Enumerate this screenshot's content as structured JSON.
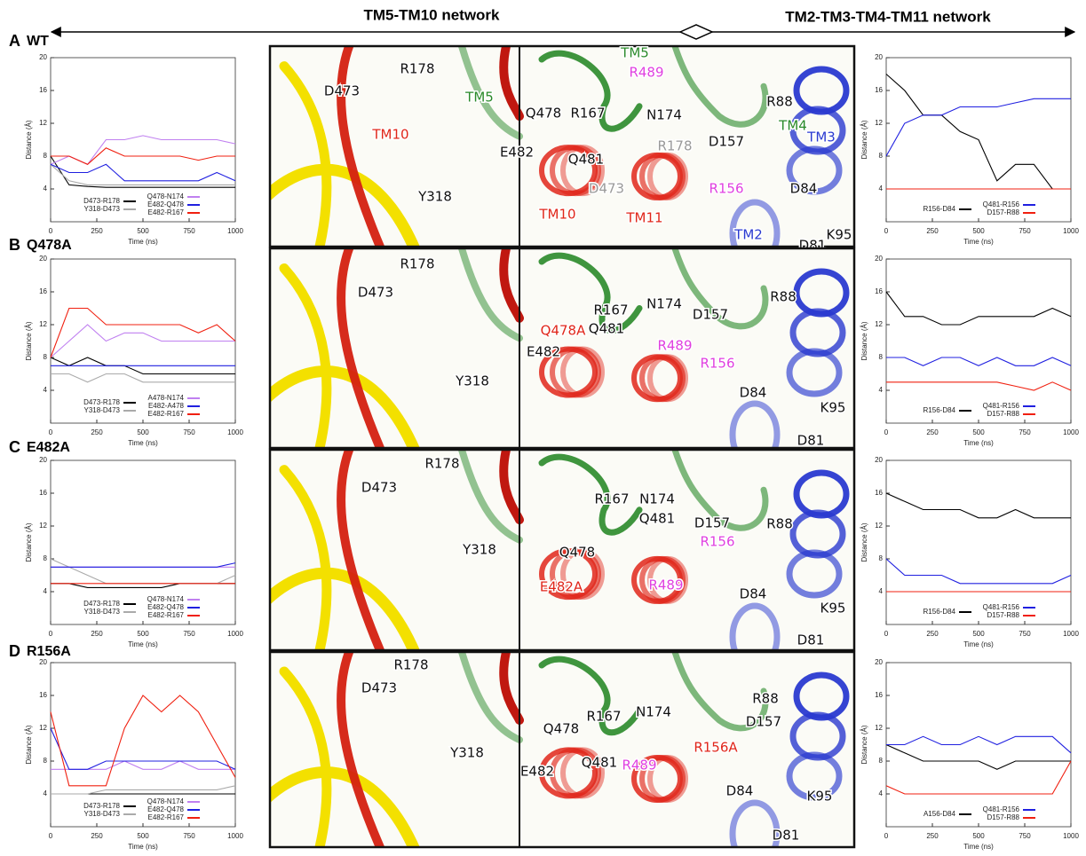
{
  "header": {
    "left": "TM5-TM10 network",
    "right": "TM2-TM3-TM4-TM11 network"
  },
  "rows": [
    {
      "label": "A",
      "mutant": "WT",
      "left_labels": [
        {
          "text": "R178",
          "color": "#111111"
        },
        {
          "text": "D473",
          "color": "#111111"
        },
        {
          "text": "TM5",
          "color": "#2a8a2a"
        },
        {
          "text": "TM10",
          "color": "#e0261a"
        },
        {
          "text": "Y318",
          "color": "#111111"
        }
      ],
      "right_labels": [
        {
          "text": "TM5",
          "color": "#2a8a2a"
        },
        {
          "text": "R489",
          "color": "#e040e0"
        },
        {
          "text": "Q478",
          "color": "#111111"
        },
        {
          "text": "R167",
          "color": "#111111"
        },
        {
          "text": "N174",
          "color": "#111111"
        },
        {
          "text": "E482",
          "color": "#111111"
        },
        {
          "text": "Q481",
          "color": "#111111"
        },
        {
          "text": "R178",
          "color": "#9a9a9a"
        },
        {
          "text": "D473",
          "color": "#9a9a9a"
        },
        {
          "text": "TM10",
          "color": "#e0261a"
        },
        {
          "text": "TM11",
          "color": "#e0261a"
        },
        {
          "text": "R88",
          "color": "#111111"
        },
        {
          "text": "D157",
          "color": "#111111"
        },
        {
          "text": "TM4",
          "color": "#2a8a2a"
        },
        {
          "text": "TM3",
          "color": "#2a3ad0"
        },
        {
          "text": "R156",
          "color": "#e040e0"
        },
        {
          "text": "D84",
          "color": "#111111"
        },
        {
          "text": "TM2",
          "color": "#2a3ad0"
        },
        {
          "text": "K95",
          "color": "#111111"
        },
        {
          "text": "D81",
          "color": "#111111"
        }
      ]
    },
    {
      "label": "B",
      "mutant": "Q478A",
      "left_labels": [
        {
          "text": "R178",
          "color": "#111111"
        },
        {
          "text": "D473",
          "color": "#111111"
        },
        {
          "text": "Y318",
          "color": "#111111"
        }
      ],
      "right_labels": [
        {
          "text": "R167",
          "color": "#111111"
        },
        {
          "text": "N174",
          "color": "#111111"
        },
        {
          "text": "Q481",
          "color": "#111111"
        },
        {
          "text": "Q478A",
          "color": "#e0261a"
        },
        {
          "text": "E482",
          "color": "#111111"
        },
        {
          "text": "R489",
          "color": "#e040e0"
        },
        {
          "text": "R156",
          "color": "#e040e0"
        },
        {
          "text": "D157",
          "color": "#111111"
        },
        {
          "text": "R88",
          "color": "#111111"
        },
        {
          "text": "D84",
          "color": "#111111"
        },
        {
          "text": "K95",
          "color": "#111111"
        },
        {
          "text": "D81",
          "color": "#111111"
        }
      ]
    },
    {
      "label": "C",
      "mutant": "E482A",
      "left_labels": [
        {
          "text": "R178",
          "color": "#111111"
        },
        {
          "text": "D473",
          "color": "#111111"
        },
        {
          "text": "Y318",
          "color": "#111111"
        }
      ],
      "right_labels": [
        {
          "text": "N174",
          "color": "#111111"
        },
        {
          "text": "R167",
          "color": "#111111"
        },
        {
          "text": "D157",
          "color": "#111111"
        },
        {
          "text": "Q481",
          "color": "#111111"
        },
        {
          "text": "R88",
          "color": "#111111"
        },
        {
          "text": "Q478",
          "color": "#111111"
        },
        {
          "text": "R156",
          "color": "#e040e0"
        },
        {
          "text": "E482A",
          "color": "#e0261a"
        },
        {
          "text": "R489",
          "color": "#e040e0"
        },
        {
          "text": "D84",
          "color": "#111111"
        },
        {
          "text": "K95",
          "color": "#111111"
        },
        {
          "text": "D81",
          "color": "#111111"
        }
      ]
    },
    {
      "label": "D",
      "mutant": "R156A",
      "left_labels": [
        {
          "text": "R178",
          "color": "#111111"
        },
        {
          "text": "D473",
          "color": "#111111"
        },
        {
          "text": "Y318",
          "color": "#111111"
        }
      ],
      "right_labels": [
        {
          "text": "R88",
          "color": "#111111"
        },
        {
          "text": "R167",
          "color": "#111111"
        },
        {
          "text": "N174",
          "color": "#111111"
        },
        {
          "text": "D157",
          "color": "#111111"
        },
        {
          "text": "Q478",
          "color": "#111111"
        },
        {
          "text": "R156A",
          "color": "#e0261a"
        },
        {
          "text": "Q481",
          "color": "#111111"
        },
        {
          "text": "R489",
          "color": "#e040e0"
        },
        {
          "text": "E482",
          "color": "#111111"
        },
        {
          "text": "D84",
          "color": "#111111"
        },
        {
          "text": "K95",
          "color": "#111111"
        },
        {
          "text": "D81",
          "color": "#111111"
        }
      ]
    }
  ],
  "chart_data": [
    {
      "type": "line",
      "xlabel": "Time (ns)",
      "ylabel": "Distance (Å)",
      "x": [
        0,
        100,
        200,
        300,
        400,
        500,
        600,
        700,
        800,
        900,
        1000
      ],
      "xlim": [
        0,
        1000
      ],
      "ylim": [
        0,
        20
      ],
      "xticks": [
        0,
        250,
        500,
        750,
        1000
      ],
      "yticks": [
        4,
        8,
        12,
        16,
        20
      ],
      "series": [
        {
          "name": "D473-R178",
          "color": "#000000",
          "values": [
            8,
            4.5,
            4.3,
            4.2,
            4.2,
            4.2,
            4.2,
            4.2,
            4.2,
            4.2,
            4.2
          ]
        },
        {
          "name": "Y318-D473",
          "color": "#aaaaaa",
          "values": [
            7,
            5,
            4.5,
            4.5,
            4.5,
            4.5,
            4.5,
            4.5,
            4.5,
            4.5,
            4.5
          ]
        },
        {
          "name": "Q478-N174",
          "color": "#c080f0",
          "values": [
            7,
            8,
            7,
            10,
            10,
            10.5,
            10,
            10,
            10,
            10,
            9.5
          ]
        },
        {
          "name": "E482-Q478",
          "color": "#2020e0",
          "values": [
            7,
            6,
            6,
            7,
            5,
            5,
            5,
            5,
            5,
            6,
            5
          ]
        },
        {
          "name": "E482-R167",
          "color": "#f02010",
          "values": [
            8,
            8,
            7,
            9,
            8,
            8,
            8,
            8,
            7.5,
            8,
            8
          ]
        }
      ]
    },
    {
      "type": "line",
      "xlabel": "Time (ns)",
      "ylabel": "Distance (Å)",
      "x": [
        0,
        100,
        200,
        300,
        400,
        500,
        600,
        700,
        800,
        900,
        1000
      ],
      "xlim": [
        0,
        1000
      ],
      "ylim": [
        0,
        20
      ],
      "xticks": [
        0,
        250,
        500,
        750,
        1000
      ],
      "yticks": [
        4,
        8,
        12,
        16,
        20
      ],
      "series": [
        {
          "name": "R156-D84",
          "color": "#000000",
          "values": [
            18,
            16,
            13,
            13,
            11,
            10,
            5,
            7,
            7,
            4,
            4
          ]
        },
        {
          "name": "Q481-R156",
          "color": "#2020e0",
          "values": [
            8,
            12,
            13,
            13,
            14,
            14,
            14,
            14.5,
            15,
            15,
            15
          ]
        },
        {
          "name": "D157-R88",
          "color": "#f02010",
          "values": [
            4,
            4,
            4,
            4,
            4,
            4,
            4,
            4,
            4,
            4,
            4
          ]
        }
      ]
    },
    {
      "type": "line",
      "xlabel": "Time (ns)",
      "ylabel": "Distance (Å)",
      "x": [
        0,
        100,
        200,
        300,
        400,
        500,
        600,
        700,
        800,
        900,
        1000
      ],
      "xlim": [
        0,
        1000
      ],
      "ylim": [
        0,
        20
      ],
      "xticks": [
        0,
        250,
        500,
        750,
        1000
      ],
      "yticks": [
        4,
        8,
        12,
        16,
        20
      ],
      "series": [
        {
          "name": "D473-R178",
          "color": "#000000",
          "values": [
            8,
            7,
            8,
            7,
            7,
            6,
            6,
            6,
            6,
            6,
            6
          ]
        },
        {
          "name": "Y318-D473",
          "color": "#aaaaaa",
          "values": [
            6,
            6,
            5,
            6,
            6,
            5,
            5,
            5,
            5,
            5,
            5
          ]
        },
        {
          "name": "A478-N174",
          "color": "#c080f0",
          "values": [
            8,
            10,
            12,
            10,
            11,
            11,
            10,
            10,
            10,
            10,
            10
          ]
        },
        {
          "name": "E482-A478",
          "color": "#2020e0",
          "values": [
            7,
            7,
            7,
            7,
            7,
            7,
            7,
            7,
            7,
            7,
            7
          ]
        },
        {
          "name": "E482-R167",
          "color": "#f02010",
          "values": [
            8,
            14,
            14,
            12,
            12,
            12,
            12,
            12,
            11,
            12,
            10
          ]
        }
      ]
    },
    {
      "type": "line",
      "xlabel": "Time (ns)",
      "ylabel": "Distance (Å)",
      "x": [
        0,
        100,
        200,
        300,
        400,
        500,
        600,
        700,
        800,
        900,
        1000
      ],
      "xlim": [
        0,
        1000
      ],
      "ylim": [
        0,
        20
      ],
      "xticks": [
        0,
        250,
        500,
        750,
        1000
      ],
      "yticks": [
        4,
        8,
        12,
        16,
        20
      ],
      "series": [
        {
          "name": "R156-D84",
          "color": "#000000",
          "values": [
            16,
            13,
            13,
            12,
            12,
            13,
            13,
            13,
            13,
            14,
            13
          ]
        },
        {
          "name": "Q481-R156",
          "color": "#2020e0",
          "values": [
            8,
            8,
            7,
            8,
            8,
            7,
            8,
            7,
            7,
            8,
            7
          ]
        },
        {
          "name": "D157-R88",
          "color": "#f02010",
          "values": [
            5,
            5,
            5,
            5,
            5,
            5,
            5,
            4.5,
            4,
            5,
            4
          ]
        }
      ]
    },
    {
      "type": "line",
      "xlabel": "Time (ns)",
      "ylabel": "Distance (Å)",
      "x": [
        0,
        100,
        200,
        300,
        400,
        500,
        600,
        700,
        800,
        900,
        1000
      ],
      "xlim": [
        0,
        1000
      ],
      "ylim": [
        0,
        20
      ],
      "xticks": [
        0,
        250,
        500,
        750,
        1000
      ],
      "yticks": [
        4,
        8,
        12,
        16,
        20
      ],
      "series": [
        {
          "name": "D473-R178",
          "color": "#000000",
          "values": [
            5,
            5,
            4.5,
            4.5,
            4.5,
            4.5,
            4.5,
            5,
            5,
            5,
            5
          ]
        },
        {
          "name": "Y318-D473",
          "color": "#aaaaaa",
          "values": [
            8,
            7,
            6,
            5,
            5,
            5,
            5,
            5,
            5,
            5,
            6
          ]
        },
        {
          "name": "Q478-N174",
          "color": "#c080f0",
          "values": [
            7,
            7,
            7,
            7,
            7,
            7,
            7,
            7,
            7,
            7,
            7
          ]
        },
        {
          "name": "E482-Q478",
          "color": "#2020e0",
          "values": [
            7,
            7,
            7,
            7,
            7,
            7,
            7,
            7,
            7,
            7,
            7.5
          ]
        },
        {
          "name": "E482-R167",
          "color": "#f02010",
          "values": [
            5,
            5,
            5,
            5,
            5,
            5,
            5,
            5,
            5,
            5,
            5
          ]
        }
      ]
    },
    {
      "type": "line",
      "xlabel": "Time (ns)",
      "ylabel": "Distance (Å)",
      "x": [
        0,
        100,
        200,
        300,
        400,
        500,
        600,
        700,
        800,
        900,
        1000
      ],
      "xlim": [
        0,
        1000
      ],
      "ylim": [
        0,
        20
      ],
      "xticks": [
        0,
        250,
        500,
        750,
        1000
      ],
      "yticks": [
        4,
        8,
        12,
        16,
        20
      ],
      "series": [
        {
          "name": "R156-D84",
          "color": "#000000",
          "values": [
            16,
            15,
            14,
            14,
            14,
            13,
            13,
            14,
            13,
            13,
            13
          ]
        },
        {
          "name": "Q481-R156",
          "color": "#2020e0",
          "values": [
            8,
            6,
            6,
            6,
            5,
            5,
            5,
            5,
            5,
            5,
            6
          ]
        },
        {
          "name": "D157-R88",
          "color": "#f02010",
          "values": [
            4,
            4,
            4,
            4,
            4,
            4,
            4,
            4,
            4,
            4,
            4
          ]
        }
      ]
    },
    {
      "type": "line",
      "xlabel": "Time (ns)",
      "ylabel": "Distance (Å)",
      "x": [
        0,
        100,
        200,
        300,
        400,
        500,
        600,
        700,
        800,
        900,
        1000
      ],
      "xlim": [
        0,
        1000
      ],
      "ylim": [
        0,
        20
      ],
      "xticks": [
        0,
        250,
        500,
        750,
        1000
      ],
      "yticks": [
        4,
        8,
        12,
        16,
        20
      ],
      "series": [
        {
          "name": "D473-R178",
          "color": "#000000",
          "values": [
            4,
            4,
            4,
            4,
            4,
            4,
            4,
            4,
            4,
            4,
            4
          ]
        },
        {
          "name": "Y318-D473",
          "color": "#aaaaaa",
          "values": [
            4,
            4,
            4,
            4.5,
            4.5,
            4.5,
            4.5,
            4.5,
            4.5,
            4.5,
            5
          ]
        },
        {
          "name": "Q478-N174",
          "color": "#c080f0",
          "values": [
            7,
            7,
            7,
            7,
            8,
            7,
            7,
            8,
            7,
            7,
            7
          ]
        },
        {
          "name": "E482-Q478",
          "color": "#2020e0",
          "values": [
            12,
            7,
            7,
            8,
            8,
            8,
            8,
            8,
            8,
            8,
            7
          ]
        },
        {
          "name": "E482-R167",
          "color": "#f02010",
          "values": [
            14,
            5,
            5,
            5,
            12,
            16,
            14,
            16,
            14,
            10,
            6
          ]
        }
      ]
    },
    {
      "type": "line",
      "xlabel": "Time (ns)",
      "ylabel": "Distance (Å)",
      "x": [
        0,
        100,
        200,
        300,
        400,
        500,
        600,
        700,
        800,
        900,
        1000
      ],
      "xlim": [
        0,
        1000
      ],
      "ylim": [
        0,
        20
      ],
      "xticks": [
        0,
        250,
        500,
        750,
        1000
      ],
      "yticks": [
        4,
        8,
        12,
        16,
        20
      ],
      "series": [
        {
          "name": "A156-D84",
          "color": "#000000",
          "values": [
            10,
            9,
            8,
            8,
            8,
            8,
            7,
            8,
            8,
            8,
            8
          ]
        },
        {
          "name": "Q481-R156",
          "color": "#2020e0",
          "values": [
            10,
            10,
            11,
            10,
            10,
            11,
            10,
            11,
            11,
            11,
            9
          ]
        },
        {
          "name": "D157-R88",
          "color": "#f02010",
          "values": [
            5,
            4,
            4,
            4,
            4,
            4,
            4,
            4,
            4,
            4,
            8
          ]
        }
      ]
    }
  ]
}
